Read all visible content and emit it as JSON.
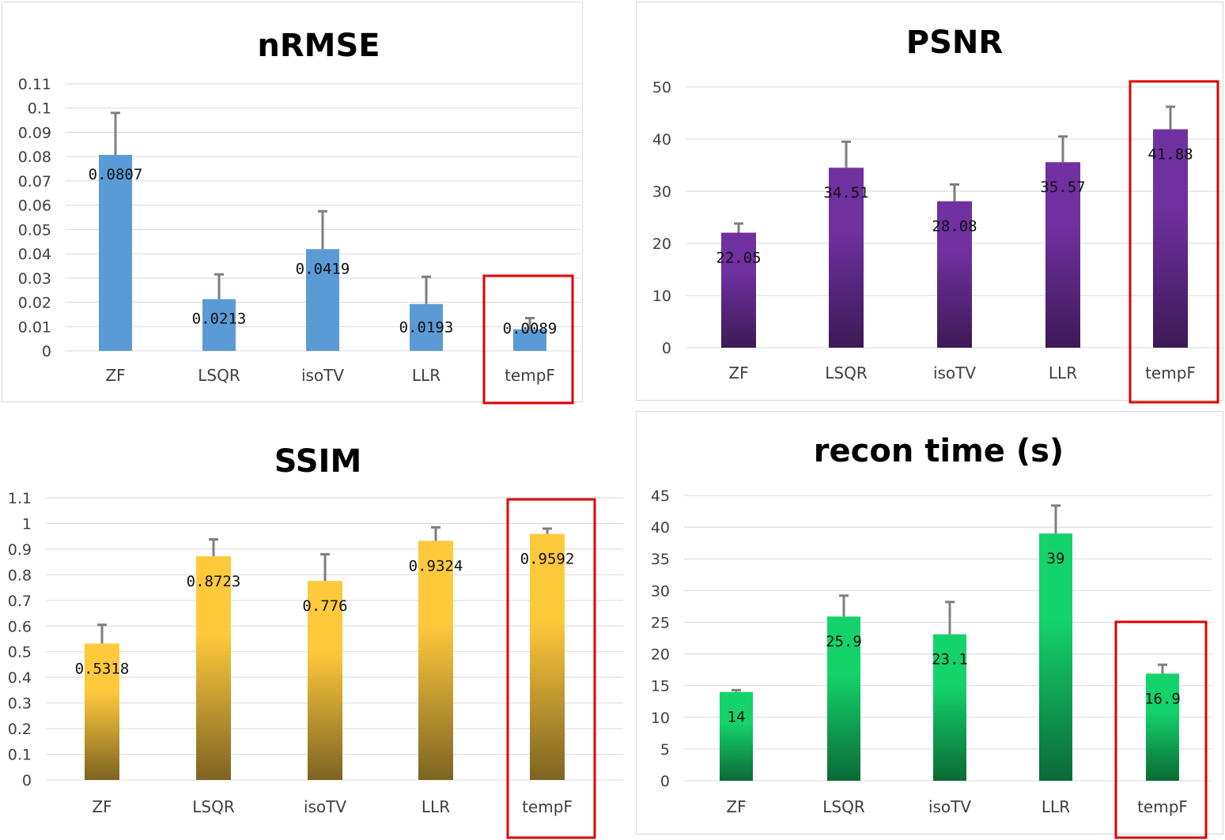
{
  "chart_data": [
    {
      "id": "nrmse",
      "type": "bar",
      "title": "nRMSE",
      "categories": [
        "ZF",
        "LSQR",
        "isoTV",
        "LLR",
        "tempF"
      ],
      "values": [
        0.0807,
        0.0213,
        0.0419,
        0.0193,
        0.0089
      ],
      "value_labels": [
        "0.0807",
        "0.0213",
        "0.0419",
        "0.0193",
        "0.0089"
      ],
      "error_tops": [
        0.098,
        0.0315,
        0.0575,
        0.0305,
        0.0135
      ],
      "ylim": [
        0,
        0.11
      ],
      "y_ticks": [
        "0",
        "0.01",
        "0.02",
        "0.03",
        "0.04",
        "0.05",
        "0.06",
        "0.07",
        "0.08",
        "0.09",
        "0.1",
        "0.11"
      ],
      "y_tick_values": [
        0,
        0.01,
        0.02,
        0.03,
        0.04,
        0.05,
        0.06,
        0.07,
        0.08,
        0.09,
        0.1,
        0.11
      ],
      "bar_color": "#5b9bd5",
      "bar_color_bottom": "#5b9bd5",
      "highlight_category": "tempF",
      "highlight_color": "#e00000",
      "grid": true
    },
    {
      "id": "psnr",
      "type": "bar",
      "title": "PSNR",
      "categories": [
        "ZF",
        "LSQR",
        "isoTV",
        "LLR",
        "tempF"
      ],
      "values": [
        22.05,
        34.51,
        28.08,
        35.57,
        41.88
      ],
      "value_labels": [
        "22.05",
        "34.51",
        "28.08",
        "35.57",
        "41.88"
      ],
      "error_tops": [
        23.8,
        39.5,
        31.3,
        40.5,
        46.2
      ],
      "ylim": [
        0,
        50
      ],
      "y_ticks": [
        "0",
        "10",
        "20",
        "30",
        "40",
        "50"
      ],
      "y_tick_values": [
        0,
        10,
        20,
        30,
        40,
        50
      ],
      "bar_color": "#7030a0",
      "bar_color_bottom": "#3b1a55",
      "highlight_category": "tempF",
      "highlight_color": "#e00000",
      "grid": true
    },
    {
      "id": "ssim",
      "type": "bar",
      "title": "SSIM",
      "categories": [
        "ZF",
        "LSQR",
        "isoTV",
        "LLR",
        "tempF"
      ],
      "values": [
        0.5318,
        0.8723,
        0.776,
        0.9324,
        0.9592
      ],
      "value_labels": [
        "0.5318",
        "0.8723",
        "0.776",
        "0.9324",
        "0.9592"
      ],
      "error_tops": [
        0.605,
        0.938,
        0.88,
        0.985,
        0.98
      ],
      "ylim": [
        0,
        1.1
      ],
      "y_ticks": [
        "0",
        "0.1",
        "0.2",
        "0.3",
        "0.4",
        "0.5",
        "0.6",
        "0.7",
        "0.8",
        "0.9",
        "1",
        "1.1"
      ],
      "y_tick_values": [
        0,
        0.1,
        0.2,
        0.3,
        0.4,
        0.5,
        0.6,
        0.7,
        0.8,
        0.9,
        1,
        1.1
      ],
      "bar_color": "#ffc93c",
      "bar_color_bottom": "#7d6422",
      "highlight_category": "tempF",
      "highlight_color": "#e00000",
      "grid": true
    },
    {
      "id": "time",
      "type": "bar",
      "title": "recon time (s)",
      "categories": [
        "ZF",
        "LSQR",
        "isoTV",
        "LLR",
        "tempF"
      ],
      "values": [
        14,
        25.9,
        23.1,
        39,
        16.9
      ],
      "value_labels": [
        "14",
        "25.9",
        "23.1",
        "39",
        "16.9"
      ],
      "error_tops": [
        14.3,
        29.2,
        28.2,
        43.4,
        18.3
      ],
      "ylim": [
        0,
        45
      ],
      "y_ticks": [
        "0",
        "5",
        "10",
        "15",
        "20",
        "25",
        "30",
        "35",
        "40",
        "45"
      ],
      "y_tick_values": [
        0,
        5,
        10,
        15,
        20,
        25,
        30,
        35,
        40,
        45
      ],
      "bar_color": "#14d36a",
      "bar_color_bottom": "#0a6a36",
      "highlight_category": "tempF",
      "highlight_color": "#e00000",
      "grid": true
    }
  ]
}
